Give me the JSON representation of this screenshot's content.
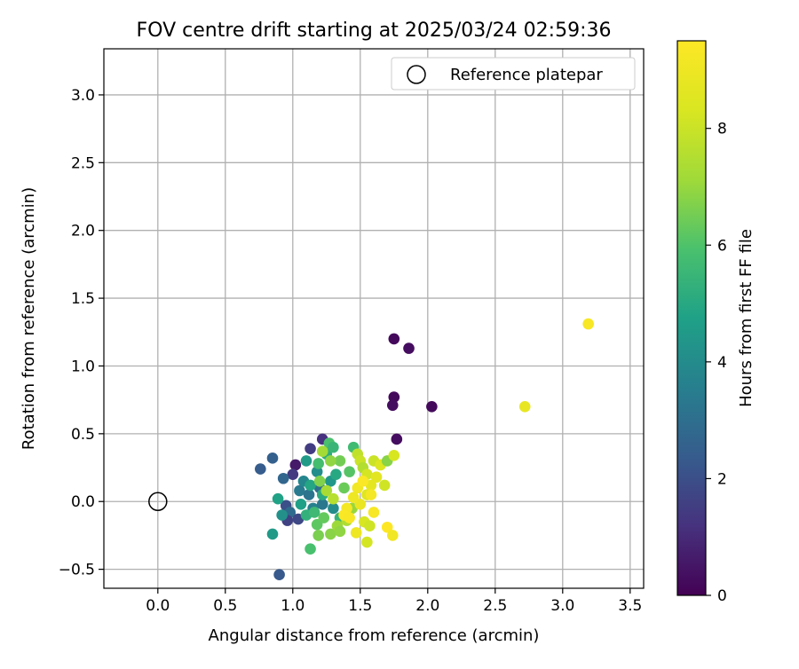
{
  "chart_data": {
    "type": "scatter",
    "title": "FOV centre drift starting at 2025/03/24 02:59:36",
    "xlabel": "Angular distance from reference (arcmin)",
    "ylabel": "Rotation from reference (arcmin)",
    "xlim": [
      -0.4,
      3.6
    ],
    "ylim": [
      -0.64,
      3.34
    ],
    "xticks": [
      0.0,
      0.5,
      1.0,
      1.5,
      2.0,
      2.5,
      3.0,
      3.5
    ],
    "yticks": [
      -0.5,
      0.0,
      0.5,
      1.0,
      1.5,
      2.0,
      2.5,
      3.0
    ],
    "xtick_labels": [
      "0.0",
      "0.5",
      "1.0",
      "1.5",
      "2.0",
      "2.5",
      "3.0",
      "3.5"
    ],
    "ytick_labels": [
      "−0.5",
      "0.0",
      "0.5",
      "1.0",
      "1.5",
      "2.0",
      "2.5",
      "3.0"
    ],
    "grid": true,
    "legend": {
      "position": "top-right",
      "entries": [
        {
          "label": "Reference platepar",
          "marker": "open-circle"
        }
      ]
    },
    "reference_point": {
      "x": 0.0,
      "y": 0.0
    },
    "colorbar": {
      "label": "Hours from first FF file",
      "colormap": "viridis",
      "range": [
        0,
        9.5
      ],
      "ticks": [
        0,
        2,
        4,
        6,
        8
      ],
      "tick_labels": [
        "0",
        "2",
        "4",
        "6",
        "8"
      ]
    },
    "points": [
      {
        "x": 1.75,
        "y": 1.2,
        "h": 0.2
      },
      {
        "x": 1.86,
        "y": 1.13,
        "h": 0.3
      },
      {
        "x": 1.75,
        "y": 0.77,
        "h": 0.2
      },
      {
        "x": 1.74,
        "y": 0.71,
        "h": 0.3
      },
      {
        "x": 2.03,
        "y": 0.7,
        "h": 0.2
      },
      {
        "x": 1.77,
        "y": 0.46,
        "h": 0.3
      },
      {
        "x": 1.22,
        "y": 0.46,
        "h": 1.2
      },
      {
        "x": 1.13,
        "y": 0.39,
        "h": 1.5
      },
      {
        "x": 1.02,
        "y": 0.27,
        "h": 0.6
      },
      {
        "x": 1.0,
        "y": 0.2,
        "h": 1.4
      },
      {
        "x": 0.85,
        "y": 0.32,
        "h": 2.5
      },
      {
        "x": 0.76,
        "y": 0.24,
        "h": 2.4
      },
      {
        "x": 0.93,
        "y": 0.17,
        "h": 2.7
      },
      {
        "x": 0.95,
        "y": -0.03,
        "h": 2.0
      },
      {
        "x": 0.98,
        "y": -0.08,
        "h": 2.9
      },
      {
        "x": 0.96,
        "y": -0.14,
        "h": 1.6
      },
      {
        "x": 1.04,
        "y": -0.13,
        "h": 1.8
      },
      {
        "x": 0.92,
        "y": -0.1,
        "h": 4.2
      },
      {
        "x": 0.85,
        "y": -0.24,
        "h": 4.5
      },
      {
        "x": 0.89,
        "y": 0.02,
        "h": 4.8
      },
      {
        "x": 0.9,
        "y": -0.54,
        "h": 2.3
      },
      {
        "x": 1.05,
        "y": 0.08,
        "h": 3.4
      },
      {
        "x": 1.08,
        "y": 0.15,
        "h": 3.8
      },
      {
        "x": 1.1,
        "y": 0.3,
        "h": 4.5
      },
      {
        "x": 1.12,
        "y": 0.05,
        "h": 3.2
      },
      {
        "x": 1.15,
        "y": -0.05,
        "h": 3.6
      },
      {
        "x": 1.18,
        "y": 0.22,
        "h": 4.1
      },
      {
        "x": 1.2,
        "y": 0.1,
        "h": 3.0
      },
      {
        "x": 1.22,
        "y": -0.02,
        "h": 3.3
      },
      {
        "x": 1.25,
        "y": 0.35,
        "h": 5.2
      },
      {
        "x": 1.06,
        "y": -0.02,
        "h": 4.7
      },
      {
        "x": 1.1,
        "y": -0.1,
        "h": 5.3
      },
      {
        "x": 1.13,
        "y": 0.12,
        "h": 4.9
      },
      {
        "x": 1.16,
        "y": -0.08,
        "h": 5.6
      },
      {
        "x": 1.19,
        "y": 0.28,
        "h": 5.8
      },
      {
        "x": 1.22,
        "y": 0.05,
        "h": 5.1
      },
      {
        "x": 1.27,
        "y": 0.43,
        "h": 5.9
      },
      {
        "x": 1.3,
        "y": 0.4,
        "h": 5.5
      },
      {
        "x": 1.28,
        "y": 0.15,
        "h": 4.4
      },
      {
        "x": 1.3,
        "y": -0.05,
        "h": 4.0
      },
      {
        "x": 1.32,
        "y": 0.2,
        "h": 5.0
      },
      {
        "x": 1.35,
        "y": -0.12,
        "h": 5.4
      },
      {
        "x": 1.18,
        "y": -0.17,
        "h": 6.2
      },
      {
        "x": 1.19,
        "y": -0.25,
        "h": 6.6
      },
      {
        "x": 1.13,
        "y": -0.35,
        "h": 5.9
      },
      {
        "x": 1.23,
        "y": -0.12,
        "h": 6.3
      },
      {
        "x": 1.28,
        "y": -0.24,
        "h": 6.8
      },
      {
        "x": 1.33,
        "y": -0.18,
        "h": 7.1
      },
      {
        "x": 1.35,
        "y": -0.22,
        "h": 6.9
      },
      {
        "x": 1.4,
        "y": -0.14,
        "h": 7.4
      },
      {
        "x": 1.44,
        "y": -0.05,
        "h": 7.0
      },
      {
        "x": 1.38,
        "y": 0.1,
        "h": 6.4
      },
      {
        "x": 1.42,
        "y": 0.22,
        "h": 6.1
      },
      {
        "x": 1.45,
        "y": 0.4,
        "h": 5.7
      },
      {
        "x": 1.35,
        "y": 0.3,
        "h": 6.5
      },
      {
        "x": 1.28,
        "y": 0.3,
        "h": 6.9
      },
      {
        "x": 1.22,
        "y": 0.37,
        "h": 7.2
      },
      {
        "x": 1.2,
        "y": 0.15,
        "h": 6.7
      },
      {
        "x": 1.25,
        "y": 0.08,
        "h": 7.3
      },
      {
        "x": 1.3,
        "y": 0.02,
        "h": 7.6
      },
      {
        "x": 1.48,
        "y": 0.35,
        "h": 7.8
      },
      {
        "x": 1.5,
        "y": 0.3,
        "h": 8.0
      },
      {
        "x": 1.52,
        "y": 0.25,
        "h": 7.5
      },
      {
        "x": 1.55,
        "y": 0.2,
        "h": 8.2
      },
      {
        "x": 1.6,
        "y": 0.3,
        "h": 8.0
      },
      {
        "x": 1.65,
        "y": 0.27,
        "h": 8.4
      },
      {
        "x": 1.7,
        "y": 0.3,
        "h": 6.8
      },
      {
        "x": 1.75,
        "y": 0.34,
        "h": 8.3
      },
      {
        "x": 1.68,
        "y": 0.12,
        "h": 8.1
      },
      {
        "x": 1.62,
        "y": 0.18,
        "h": 8.6
      },
      {
        "x": 1.58,
        "y": 0.12,
        "h": 8.7
      },
      {
        "x": 1.55,
        "y": 0.05,
        "h": 8.5
      },
      {
        "x": 1.5,
        "y": -0.02,
        "h": 8.9
      },
      {
        "x": 1.48,
        "y": 0.1,
        "h": 9.1
      },
      {
        "x": 1.45,
        "y": 0.03,
        "h": 9.0
      },
      {
        "x": 1.4,
        "y": -0.05,
        "h": 9.2
      },
      {
        "x": 1.38,
        "y": -0.1,
        "h": 9.4
      },
      {
        "x": 1.42,
        "y": -0.12,
        "h": 9.3
      },
      {
        "x": 1.53,
        "y": -0.15,
        "h": 8.3
      },
      {
        "x": 1.57,
        "y": -0.18,
        "h": 8.1
      },
      {
        "x": 1.6,
        "y": -0.08,
        "h": 9.3
      },
      {
        "x": 1.55,
        "y": -0.3,
        "h": 8.2
      },
      {
        "x": 1.47,
        "y": -0.23,
        "h": 9.0
      },
      {
        "x": 1.7,
        "y": -0.19,
        "h": 9.5
      },
      {
        "x": 1.74,
        "y": -0.25,
        "h": 9.1
      },
      {
        "x": 1.52,
        "y": 0.15,
        "h": 9.4
      },
      {
        "x": 1.58,
        "y": 0.05,
        "h": 9.2
      },
      {
        "x": 2.72,
        "y": 0.7,
        "h": 8.8
      },
      {
        "x": 3.19,
        "y": 1.31,
        "h": 9.3
      }
    ]
  }
}
